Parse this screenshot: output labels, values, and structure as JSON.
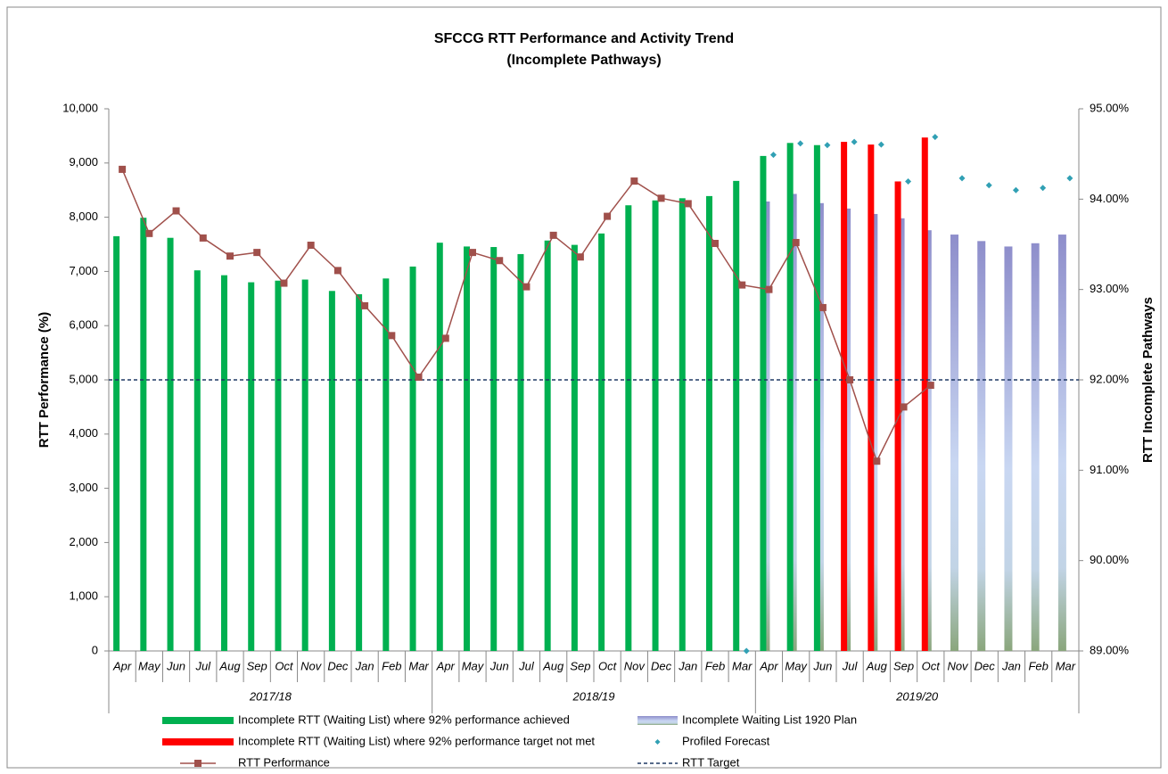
{
  "chart_data": {
    "type": "combo",
    "title": "SFCCG RTT Performance and Activity Trend",
    "subtitle": "(Incomplete Pathways)",
    "y_label": "RTT Performance (%)",
    "y2_label": "RTT Incomplete Pathways",
    "categories": [
      "Apr",
      "May",
      "Jun",
      "Jul",
      "Aug",
      "Sep",
      "Oct",
      "Nov",
      "Dec",
      "Jan",
      "Feb",
      "Mar",
      "Apr",
      "May",
      "Jun",
      "Jul",
      "Aug",
      "Sep",
      "Oct",
      "Nov",
      "Dec",
      "Jan",
      "Feb",
      "Mar",
      "Apr",
      "May",
      "Jun",
      "Jul",
      "Aug",
      "Sep",
      "Oct",
      "Nov",
      "Dec",
      "Jan",
      "Feb",
      "Mar"
    ],
    "groups": [
      "2017/18",
      "2018/19",
      "2019/20"
    ],
    "ylim": [
      0,
      10000
    ],
    "yticks": [
      0,
      {
        "value": 1000,
        "label": "1,000"
      },
      {
        "value": 2000,
        "label": "2,000"
      },
      {
        "value": 3000,
        "label": "3,000"
      },
      {
        "value": 4000,
        "label": "4,000"
      },
      {
        "value": 5000,
        "label": "5,000"
      },
      {
        "value": 6000,
        "label": "6,000"
      },
      {
        "value": 7000,
        "label": "7,000"
      },
      {
        "value": 8000,
        "label": "8,000"
      },
      {
        "value": 9000,
        "label": "9,000"
      },
      {
        "value": 10000,
        "label": "10,000"
      }
    ],
    "y2lim": [
      89,
      95
    ],
    "y2ticks": [
      {
        "value": 89,
        "label": "89.00%"
      },
      {
        "value": 90,
        "label": "90.00%"
      },
      {
        "value": 91,
        "label": "91.00%"
      },
      {
        "value": 92,
        "label": "92.00%"
      },
      {
        "value": 93,
        "label": "93.00%"
      },
      {
        "value": 94,
        "label": "94.00%"
      },
      {
        "value": 95,
        "label": "95.00%"
      }
    ],
    "series": [
      {
        "name": "Incomplete RTT (Waiting List) where 92% performance achieved",
        "kind": "bar",
        "color": "#00b050",
        "values": [
          7650,
          7990,
          7620,
          7020,
          6930,
          6800,
          6830,
          6850,
          6640,
          6580,
          6870,
          7090,
          7530,
          7460,
          7450,
          7320,
          7570,
          7490,
          7700,
          8220,
          8310,
          8350,
          8390,
          8670,
          9130,
          9370,
          9330,
          null,
          null,
          null,
          null,
          null,
          null,
          null,
          null,
          null
        ]
      },
      {
        "name": "Incomplete Waiting List 1920 Plan",
        "kind": "plan",
        "color": "#8e8ecb",
        "values": [
          null,
          null,
          null,
          null,
          null,
          null,
          null,
          null,
          null,
          null,
          null,
          null,
          null,
          null,
          null,
          null,
          null,
          null,
          null,
          null,
          null,
          null,
          null,
          null,
          8290,
          8430,
          8260,
          8160,
          8060,
          7980,
          7760,
          7680,
          7560,
          7460,
          7520,
          7680
        ]
      },
      {
        "name": "Incomplete RTT (Waiting List) where 92% performance target not met",
        "kind": "bar",
        "color": "#ff0000",
        "values": [
          null,
          null,
          null,
          null,
          null,
          null,
          null,
          null,
          null,
          null,
          null,
          null,
          null,
          null,
          null,
          null,
          null,
          null,
          null,
          null,
          null,
          null,
          null,
          null,
          null,
          null,
          null,
          9390,
          9340,
          8660,
          9470,
          null,
          null,
          null,
          null,
          null
        ]
      },
      {
        "name": "Profiled Forecast",
        "kind": "dots",
        "color": "#31a0b4",
        "values": [
          null,
          null,
          null,
          null,
          null,
          null,
          null,
          null,
          null,
          null,
          null,
          null,
          null,
          null,
          null,
          null,
          null,
          null,
          null,
          null,
          null,
          null,
          null,
          0,
          9150,
          9360,
          9330,
          9390,
          9340,
          8660,
          9480,
          8720,
          8590,
          8500,
          8540,
          8720
        ]
      },
      {
        "name": "RTT Performance",
        "kind": "line",
        "axis": "y2",
        "color": "#a0504b",
        "values": [
          94.33,
          93.62,
          93.87,
          93.57,
          93.37,
          93.41,
          93.07,
          93.49,
          93.21,
          92.82,
          92.49,
          92.03,
          92.46,
          93.41,
          93.32,
          93.03,
          93.6,
          93.36,
          93.81,
          94.2,
          94.01,
          93.95,
          93.51,
          93.05,
          93.0,
          93.52,
          92.8,
          92.0,
          91.1,
          91.7,
          91.94,
          null,
          null,
          null,
          null,
          null
        ]
      },
      {
        "name": "RTT Target",
        "kind": "target",
        "axis": "y2",
        "color": "#1f3864",
        "value": 92
      }
    ]
  }
}
